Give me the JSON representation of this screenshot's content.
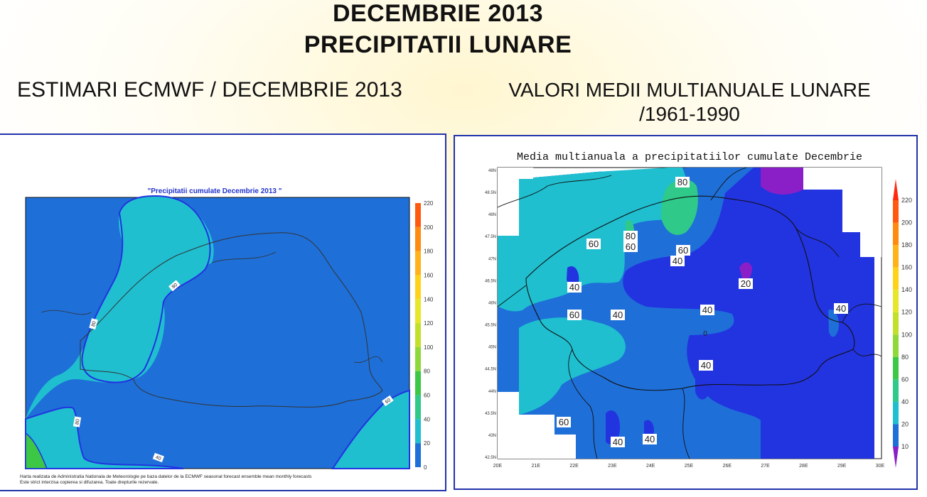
{
  "header": {
    "title_line1": "DECEMBRIE 2013",
    "title_line2": "PRECIPITATII LUNARE"
  },
  "left": {
    "heading": "ESTIMARI ECMWF / DECEMBRIE 2013",
    "map_title": "\"Precipitatii cumulate Decembrie 2013 \"",
    "contour_labels": [
      "80",
      "80",
      "80",
      "60",
      "40"
    ],
    "colorbar_ticks": [
      "220",
      "200",
      "180",
      "160",
      "140",
      "120",
      "100",
      "80",
      "60",
      "40",
      "20",
      "0"
    ],
    "footnote_line1": "Harta realizata de Administratia Nationala de Meteorologie pe baza datelor de la ECMWF seasonal forecast ensemble mean monthly forecasts",
    "footnote_line2": "Este strict interzisa copierea si difuzarea. Toate drepturile rezervate."
  },
  "right": {
    "heading_line1": "VALORI MEDII MULTIANUALE LUNARE",
    "heading_line2": "/1961-1990",
    "map_title": "Media multianuala a precipitatiilor cumulate Decembrie",
    "lat_ticks": [
      "48N",
      "48.5N",
      "48N",
      "47.5N",
      "47N",
      "46.5N",
      "46N",
      "45.5N",
      "45N",
      "44.5N",
      "44N",
      "43.5N",
      "43N",
      "42.5N"
    ],
    "lon_ticks": [
      "20E",
      "21E",
      "22E",
      "23E",
      "24E",
      "25E",
      "26E",
      "27E",
      "28E",
      "29E",
      "30E"
    ],
    "contour_labels": [
      "80",
      "80",
      "60",
      "60",
      "60",
      "40",
      "40",
      "20",
      "40",
      "40",
      "60",
      "40",
      "40",
      "40",
      "60",
      "40",
      "40",
      "0"
    ],
    "colorbar_ticks": [
      "220",
      "200",
      "180",
      "160",
      "140",
      "120",
      "100",
      "80",
      "60",
      "40",
      "20",
      "10"
    ]
  },
  "colors": {
    "band_0_10": "#8a1fc8",
    "band_20_40": "#2233e0",
    "band_40_60": "#1e6fd8",
    "band_60_80": "#1fbfd0",
    "band_80_100": "#2fc98a",
    "band_100_120": "#3cc845",
    "band_120_140": "#8fd83a",
    "band_high": "#ff2a10",
    "frame_blue": "#2233aa"
  }
}
